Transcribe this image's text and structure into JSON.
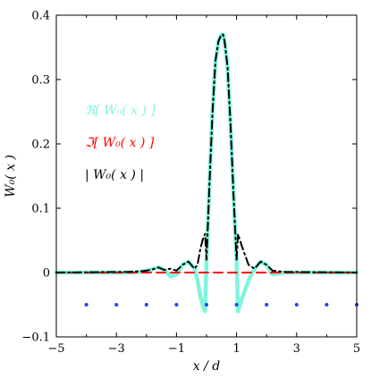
{
  "chart_data": {
    "type": "line",
    "xlabel": "x / d",
    "ylabel": "W₀( x )",
    "xlim": [
      -5,
      5
    ],
    "ylim": [
      -0.1,
      0.4
    ],
    "x_ticks": [
      -5,
      -3,
      -1,
      1,
      3,
      5
    ],
    "x_tick_labels": [
      "−5",
      "−3",
      "−1",
      "1",
      "3",
      "5"
    ],
    "x_minor_ticks": [
      -4,
      -2,
      0,
      2,
      4
    ],
    "y_ticks": [
      -0.1,
      0,
      0.1,
      0.2,
      0.3,
      0.4
    ],
    "y_tick_labels": [
      "−0.1",
      "0",
      "0.1",
      "0.2",
      "0.3",
      "0.4"
    ],
    "grid": false,
    "legend_position": "left",
    "series": [
      {
        "name": "ℜ[ W₀( x ) ]",
        "color": "#7ff5dc",
        "style": "solid-thick",
        "x": [
          -5,
          -2.6,
          -2.2,
          -2.0,
          -1.8,
          -1.6,
          -1.4,
          -1.2,
          -1.0,
          -0.8,
          -0.6,
          -0.4,
          -0.3,
          -0.2,
          -0.12,
          -0.05,
          0.0,
          0.05,
          0.1,
          0.2,
          0.3,
          0.4,
          0.5,
          0.55,
          0.6,
          0.7,
          0.8,
          0.9,
          0.95,
          1.0,
          1.05,
          1.1,
          1.2,
          1.4,
          1.6,
          1.8,
          2.0,
          2.2,
          2.6,
          5
        ],
        "y": [
          0.0,
          0.0,
          0.001,
          0.003,
          0.005,
          0.008,
          0.004,
          -0.006,
          -0.003,
          0.012,
          0.017,
          0.006,
          -0.012,
          -0.038,
          -0.052,
          -0.06,
          0.02,
          0.08,
          0.14,
          0.25,
          0.33,
          0.36,
          0.37,
          0.37,
          0.36,
          0.32,
          0.23,
          0.12,
          0.07,
          0.02,
          -0.06,
          -0.052,
          -0.038,
          -0.012,
          0.006,
          0.017,
          0.012,
          -0.003,
          0.0,
          0.0
        ]
      },
      {
        "name": "ℑ[ W₀( x ) ]",
        "color": "#ff0000",
        "style": "dashed",
        "x": [
          -5,
          5
        ],
        "y": [
          0.0,
          0.0
        ]
      },
      {
        "name": "| W₀( x ) |",
        "color": "#000000",
        "style": "dash-dot",
        "x": [
          -5,
          -2.6,
          -2.2,
          -2.0,
          -1.8,
          -1.6,
          -1.4,
          -1.2,
          -1.0,
          -0.8,
          -0.6,
          -0.4,
          -0.3,
          -0.2,
          -0.12,
          -0.05,
          0.0,
          0.05,
          0.1,
          0.2,
          0.3,
          0.4,
          0.5,
          0.55,
          0.6,
          0.7,
          0.8,
          0.9,
          0.95,
          1.0,
          1.05,
          1.1,
          1.2,
          1.4,
          1.6,
          1.8,
          2.0,
          2.2,
          2.6,
          5
        ],
        "y": [
          0.0,
          0.001,
          0.002,
          0.003,
          0.005,
          0.008,
          0.004,
          0.006,
          0.003,
          0.012,
          0.017,
          0.006,
          0.012,
          0.038,
          0.052,
          0.06,
          0.02,
          0.08,
          0.14,
          0.25,
          0.33,
          0.36,
          0.37,
          0.37,
          0.36,
          0.32,
          0.23,
          0.12,
          0.07,
          0.02,
          0.06,
          0.052,
          0.038,
          0.012,
          0.006,
          0.017,
          0.012,
          0.003,
          0.001,
          0.0
        ]
      },
      {
        "name": "",
        "color": "#1f3fff",
        "style": "markers",
        "x": [
          -4,
          -3,
          -2,
          -1,
          0,
          1,
          2,
          3,
          4,
          5
        ],
        "y": [
          -0.05,
          -0.05,
          -0.05,
          -0.05,
          -0.05,
          -0.05,
          -0.05,
          -0.05,
          -0.05,
          -0.05
        ]
      }
    ],
    "legend": [
      {
        "label": "ℜ[ W₀( x ) ]",
        "color": "#7ff5dc"
      },
      {
        "label": "ℑ[ W₀( x ) ]",
        "color": "#ff0000"
      },
      {
        "label": "| W₀( x ) |",
        "color": "#000000"
      }
    ]
  }
}
